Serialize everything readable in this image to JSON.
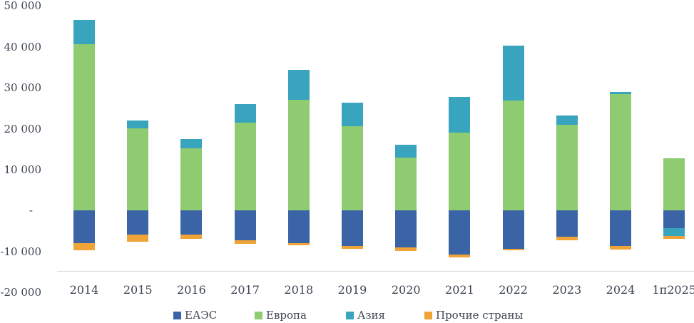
{
  "chart_data": {
    "type": "bar",
    "stacked": true,
    "title": "",
    "xlabel": "",
    "ylabel": "",
    "grid": false,
    "legend_position": "bottom",
    "categories": [
      "2014",
      "2015",
      "2016",
      "2017",
      "2018",
      "2019",
      "2020",
      "2021",
      "2022",
      "2023",
      "2024",
      "1п2025"
    ],
    "series": [
      {
        "name": "ЕАЭС",
        "color": "#3A64A6",
        "values": [
          -8000,
          -5800,
          -5900,
          -7200,
          -8000,
          -8700,
          -9000,
          -10800,
          -9300,
          -6400,
          -8600,
          -4300
        ]
      },
      {
        "name": "Европа",
        "color": "#8FCB70",
        "values": [
          40700,
          20100,
          15200,
          21500,
          27100,
          20600,
          13000,
          19100,
          26800,
          21000,
          28400,
          12700
        ]
      },
      {
        "name": "Азия",
        "color": "#38A4BD",
        "values": [
          5900,
          1900,
          2300,
          4500,
          7200,
          5700,
          3100,
          8700,
          13500,
          2300,
          500,
          -2000
        ]
      },
      {
        "name": "Прочие страны",
        "color": "#F0A437",
        "values": [
          -1700,
          -1800,
          -1100,
          -1000,
          -400,
          -700,
          -900,
          -700,
          -400,
          -900,
          -900,
          -600
        ]
      }
    ],
    "y_axis": {
      "range": [
        -20000,
        50000
      ],
      "ticks": [
        {
          "label": "50 000",
          "value": 50000
        },
        {
          "label": "40 000",
          "value": 40000
        },
        {
          "label": "30 000",
          "value": 30000
        },
        {
          "label": "20 000",
          "value": 20000
        },
        {
          "label": "10 000",
          "value": 10000
        },
        {
          "label": "-",
          "value": 0
        },
        {
          "label": "-10 000",
          "value": -10000
        },
        {
          "label": "-20 000",
          "value": -20000
        }
      ]
    },
    "colors": {
      "axis_line": "#D9D9D9",
      "text": "#3D4551",
      "background": "#FFFFFF"
    }
  }
}
